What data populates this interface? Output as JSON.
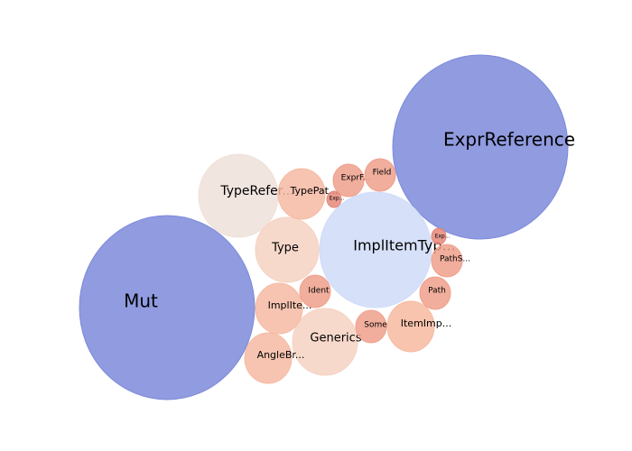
{
  "chart_data": {
    "type": "bubble",
    "title": "",
    "xlabel": "",
    "ylabel": "",
    "bubbles": [
      {
        "label": "ExprReference",
        "value": 100.0,
        "color": "#7c8adb"
      },
      {
        "label": "Mut",
        "value": 98.0,
        "color": "#7c8adb"
      },
      {
        "label": "ImplItemTyp...",
        "value": 41.0,
        "color": "#cfdcf8"
      },
      {
        "label": "TypeRefer...",
        "value": 19.5,
        "color": "#efe1da"
      },
      {
        "label": "Generics",
        "value": 14.0,
        "color": "#f6d2c2"
      },
      {
        "label": "Type",
        "value": 12.8,
        "color": "#f6d2c2"
      },
      {
        "label": "ImplIte...",
        "value": 7.5,
        "color": "#f6baa3"
      },
      {
        "label": "TypePat...",
        "value": 7.2,
        "color": "#f6baa3"
      },
      {
        "label": "AngleBr...",
        "value": 7.2,
        "color": "#f6baa3"
      },
      {
        "label": "ItemImp...",
        "value": 7.0,
        "color": "#f7baa0"
      },
      {
        "label": "Ident",
        "value": 3.2,
        "color": "#efa08c"
      },
      {
        "label": "ExprF...",
        "value": 3.2,
        "color": "#efa08c"
      },
      {
        "label": "Some",
        "value": 3.2,
        "color": "#efa08c"
      },
      {
        "label": "PathS...",
        "value": 3.2,
        "color": "#efa08c"
      },
      {
        "label": "Path",
        "value": 3.2,
        "color": "#efa08c"
      },
      {
        "label": "Field",
        "value": 3.0,
        "color": "#efa08c"
      },
      {
        "label": "Exp...",
        "value": 0.8,
        "color": "#e5877a"
      },
      {
        "label": "Exp...",
        "value": 0.8,
        "color": "#e5877a"
      }
    ]
  }
}
